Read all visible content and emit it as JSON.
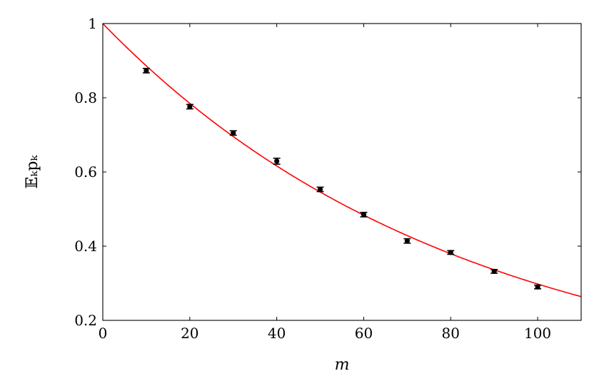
{
  "chart_data": {
    "type": "scatter",
    "title": "",
    "xlabel": "m",
    "ylabel": "𝔼ₖpₖ",
    "xlim": [
      0,
      110
    ],
    "ylim": [
      0.2,
      1.0
    ],
    "xticks": [
      0,
      20,
      40,
      60,
      80,
      100
    ],
    "yticks": [
      0.2,
      0.4,
      0.6,
      0.8,
      1.0
    ],
    "xtick_labels": [
      "0",
      "20",
      "40",
      "60",
      "80",
      "100"
    ],
    "ytick_labels": [
      "0.2",
      "0.4",
      "0.6",
      "0.8",
      "1"
    ],
    "grid": false,
    "legend": "none",
    "series": [
      {
        "kind": "points-with-errorbars",
        "color": "#000000",
        "x": [
          10,
          20,
          30,
          40,
          50,
          60,
          70,
          80,
          90,
          100
        ],
        "y": [
          0.873,
          0.776,
          0.705,
          0.629,
          0.553,
          0.485,
          0.414,
          0.383,
          0.332,
          0.29
        ],
        "yerr": [
          0.006,
          0.006,
          0.006,
          0.008,
          0.006,
          0.006,
          0.006,
          0.005,
          0.005,
          0.005
        ]
      },
      {
        "kind": "fit-curve",
        "color": "#ff0000",
        "x": [
          0,
          10,
          20,
          30,
          40,
          50,
          60,
          70,
          80,
          90,
          100,
          110
        ],
        "y": [
          1.0,
          0.886,
          0.785,
          0.695,
          0.616,
          0.546,
          0.484,
          0.429,
          0.38,
          0.336,
          0.298,
          0.264
        ]
      }
    ]
  }
}
